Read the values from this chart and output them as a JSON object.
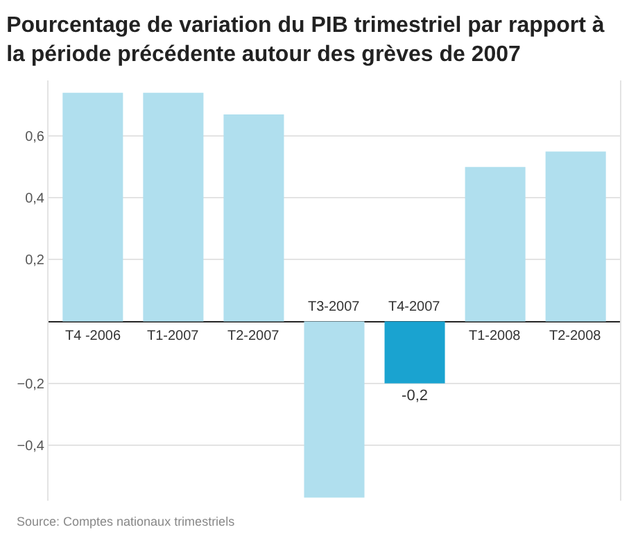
{
  "chart_data": {
    "type": "bar",
    "title": "Pourcentage de variation du PIB trimestriel par rapport à la période précédente autour des grèves de 2007",
    "categories": [
      "T4 -2006",
      "T1-2007",
      "T2-2007",
      "T3-2007",
      "T4-2007",
      "T1-2008",
      "T2-2008"
    ],
    "values": [
      0.74,
      0.74,
      0.67,
      -0.57,
      -0.2,
      0.5,
      0.55
    ],
    "colors": [
      "#b0dfee",
      "#b0dfee",
      "#b0dfee",
      "#b0dfee",
      "#1aa3d0",
      "#b0dfee",
      "#b0dfee"
    ],
    "value_labels": [
      null,
      null,
      null,
      null,
      "-0,2",
      null,
      null
    ],
    "ylim": [
      -0.58,
      0.78
    ],
    "yticks": [
      {
        "value": -0.4,
        "label": "−0,4"
      },
      {
        "value": -0.2,
        "label": "−0,2"
      },
      {
        "value": 0.2,
        "label": "0,2"
      },
      {
        "value": 0.4,
        "label": "0,4"
      },
      {
        "value": 0.6,
        "label": "0,6"
      }
    ],
    "grid": "y",
    "annotations": [
      "Source: Comptes nationaux trimestriels"
    ]
  }
}
